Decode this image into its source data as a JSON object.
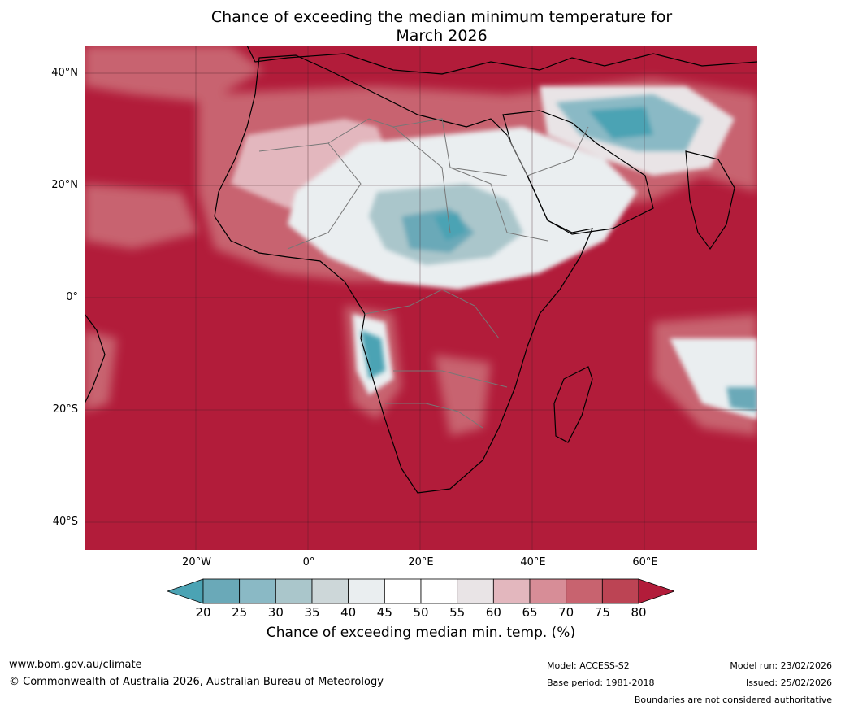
{
  "title_line1": "Chance of exceeding the median minimum temperature for",
  "title_line2": "March 2026",
  "lat_labels": [
    "40°N",
    "20°N",
    "0°",
    "20°S",
    "40°S"
  ],
  "lon_labels": [
    "20°W",
    "0°",
    "20°E",
    "40°E",
    "60°E"
  ],
  "colorbar": {
    "ticks": [
      "20",
      "25",
      "30",
      "35",
      "40",
      "45",
      "50",
      "55",
      "60",
      "65",
      "70",
      "75",
      "80"
    ],
    "colors": [
      "#4ba3b4",
      "#6aa9b8",
      "#8ab9c5",
      "#aac6cb",
      "#cdd7d9",
      "#eaeef0",
      "#ffffff",
      "#ffffff",
      "#e9e4e6",
      "#e3b7be",
      "#d78d97",
      "#c8636f",
      "#bc4454",
      "#b21c3a"
    ],
    "label": "Chance of exceeding median min. temp. (%)"
  },
  "footer": {
    "website": "www.bom.gov.au/climate",
    "copyright": "© Commonwealth of Australia 2026, Australian Bureau of Meteorology",
    "model": "Model: ACCESS-S2",
    "base_period": "Base period: 1981-2018",
    "model_run": "Model run: 23/02/2026",
    "issued": "Issued: 25/02/2026",
    "disclaimer": "Boundaries are not considered authoritative"
  }
}
